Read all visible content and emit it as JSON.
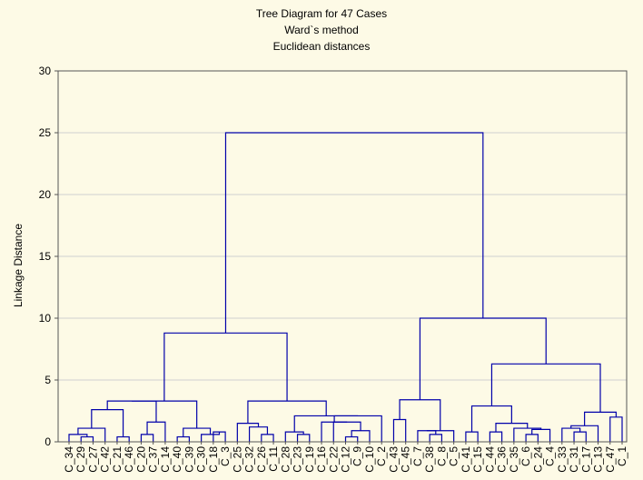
{
  "chart_data": {
    "type": "dendrogram",
    "title": "Tree Diagram for 47 Cases",
    "subtitle_lines": [
      "Ward`s method",
      "Euclidean distances"
    ],
    "ylabel": "Linkage Distance",
    "xlabel": "",
    "ylim": [
      0,
      30
    ],
    "yticks": [
      0,
      5,
      10,
      15,
      20,
      25,
      30
    ],
    "grid": true,
    "line_color": "#0000aa",
    "background_color": "#fdfae6",
    "leaves": [
      "C_34",
      "C_29",
      "C_27",
      "C_42",
      "C_21",
      "C_46",
      "C_20",
      "C_37",
      "C_14",
      "C_40",
      "C_39",
      "C_30",
      "C_18",
      "C_3",
      "C_25",
      "C_32",
      "C_26",
      "C_11",
      "C_28",
      "C_23",
      "C_19",
      "C_16",
      "C_22",
      "C_12",
      "C_9",
      "C_10",
      "C_2",
      "C_43",
      "C_45",
      "C_7",
      "C_38",
      "C_8",
      "C_5",
      "C_41",
      "C_15",
      "C_44",
      "C_36",
      "C_35",
      "C_6",
      "C_24",
      "C_4",
      "C_33",
      "C_31",
      "C_17",
      "C_13",
      "C_47",
      "C_1"
    ],
    "merges": [
      {
        "id": "a1",
        "left": "C_29",
        "right": "C_27",
        "height": 0.4
      },
      {
        "id": "a2",
        "left": "C_34",
        "right": "a1",
        "height": 0.6
      },
      {
        "id": "a3",
        "left": "a2",
        "right": "C_42",
        "height": 1.1
      },
      {
        "id": "a4",
        "left": "C_21",
        "right": "C_46",
        "height": 0.4
      },
      {
        "id": "a5",
        "left": "a3",
        "right": "a4",
        "height": 2.6
      },
      {
        "id": "a6",
        "left": "C_20",
        "right": "C_37",
        "height": 0.6
      },
      {
        "id": "a7",
        "left": "a6",
        "right": "C_14",
        "height": 1.6
      },
      {
        "id": "a8",
        "left": "a5",
        "right": "a7",
        "height": 3.3
      },
      {
        "id": "a9",
        "left": "C_40",
        "right": "C_39",
        "height": 0.4
      },
      {
        "id": "a10",
        "left": "C_18",
        "right": "C_3",
        "height": 0.8
      },
      {
        "id": "a11",
        "left": "C_30",
        "right": "a10",
        "height": 0.6
      },
      {
        "id": "a12",
        "left": "a9",
        "right": "a11",
        "height": 1.1
      },
      {
        "id": "a13",
        "left": "a8",
        "right": "a12",
        "height": 3.3
      },
      {
        "id": "b1",
        "left": "C_26",
        "right": "C_11",
        "height": 0.6
      },
      {
        "id": "b2",
        "left": "C_32",
        "right": "b1",
        "height": 1.2
      },
      {
        "id": "b3",
        "left": "C_25",
        "right": "b2",
        "height": 1.5
      },
      {
        "id": "b4",
        "left": "C_23",
        "right": "C_19",
        "height": 0.6
      },
      {
        "id": "b5",
        "left": "C_28",
        "right": "b4",
        "height": 0.8
      },
      {
        "id": "b6",
        "left": "C_12",
        "right": "C_9",
        "height": 0.4
      },
      {
        "id": "b7",
        "left": "b6",
        "right": "C_10",
        "height": 0.9
      },
      {
        "id": "b8",
        "left": "C_22",
        "right": "b7",
        "height": 1.6
      },
      {
        "id": "b9",
        "left": "C_16",
        "right": "b8",
        "height": 1.6
      },
      {
        "id": "b10",
        "left": "b9",
        "right": "C_2",
        "height": 2.1
      },
      {
        "id": "b11",
        "left": "b5",
        "right": "b10",
        "height": 2.1
      },
      {
        "id": "b12",
        "left": "b3",
        "right": "b11",
        "height": 3.3
      },
      {
        "id": "L",
        "left": "a13",
        "right": "b12",
        "height": 8.8
      },
      {
        "id": "c1",
        "left": "C_43",
        "right": "C_45",
        "height": 1.8
      },
      {
        "id": "c2",
        "left": "C_38",
        "right": "C_8",
        "height": 0.6
      },
      {
        "id": "c3",
        "left": "C_7",
        "right": "c2",
        "height": 0.9
      },
      {
        "id": "c4",
        "left": "c3",
        "right": "C_5",
        "height": 0.9
      },
      {
        "id": "c5",
        "left": "c1",
        "right": "c4",
        "height": 3.4
      },
      {
        "id": "d1",
        "left": "C_41",
        "right": "C_15",
        "height": 0.8
      },
      {
        "id": "d2",
        "left": "C_44",
        "right": "C_36",
        "height": 0.8
      },
      {
        "id": "d3",
        "left": "C_6",
        "right": "C_24",
        "height": 0.6
      },
      {
        "id": "d4",
        "left": "d3",
        "right": "C_4",
        "height": 1.0
      },
      {
        "id": "d5",
        "left": "C_35",
        "right": "d4",
        "height": 1.1
      },
      {
        "id": "d6",
        "left": "d2",
        "right": "d5",
        "height": 1.5
      },
      {
        "id": "d7",
        "left": "d1",
        "right": "d6",
        "height": 2.9
      },
      {
        "id": "e1",
        "left": "C_31",
        "right": "C_17",
        "height": 0.8
      },
      {
        "id": "e2",
        "left": "C_33",
        "right": "e1",
        "height": 1.1
      },
      {
        "id": "e3",
        "left": "e2",
        "right": "C_13",
        "height": 1.3
      },
      {
        "id": "e4",
        "left": "C_47",
        "right": "C_1",
        "height": 2.0
      },
      {
        "id": "e5",
        "left": "e3",
        "right": "e4",
        "height": 2.4
      },
      {
        "id": "d8",
        "left": "d7",
        "right": "e5",
        "height": 6.3
      },
      {
        "id": "R",
        "left": "c5",
        "right": "d8",
        "height": 10.0
      },
      {
        "id": "root",
        "left": "L",
        "right": "R",
        "height": 25.0
      }
    ]
  }
}
